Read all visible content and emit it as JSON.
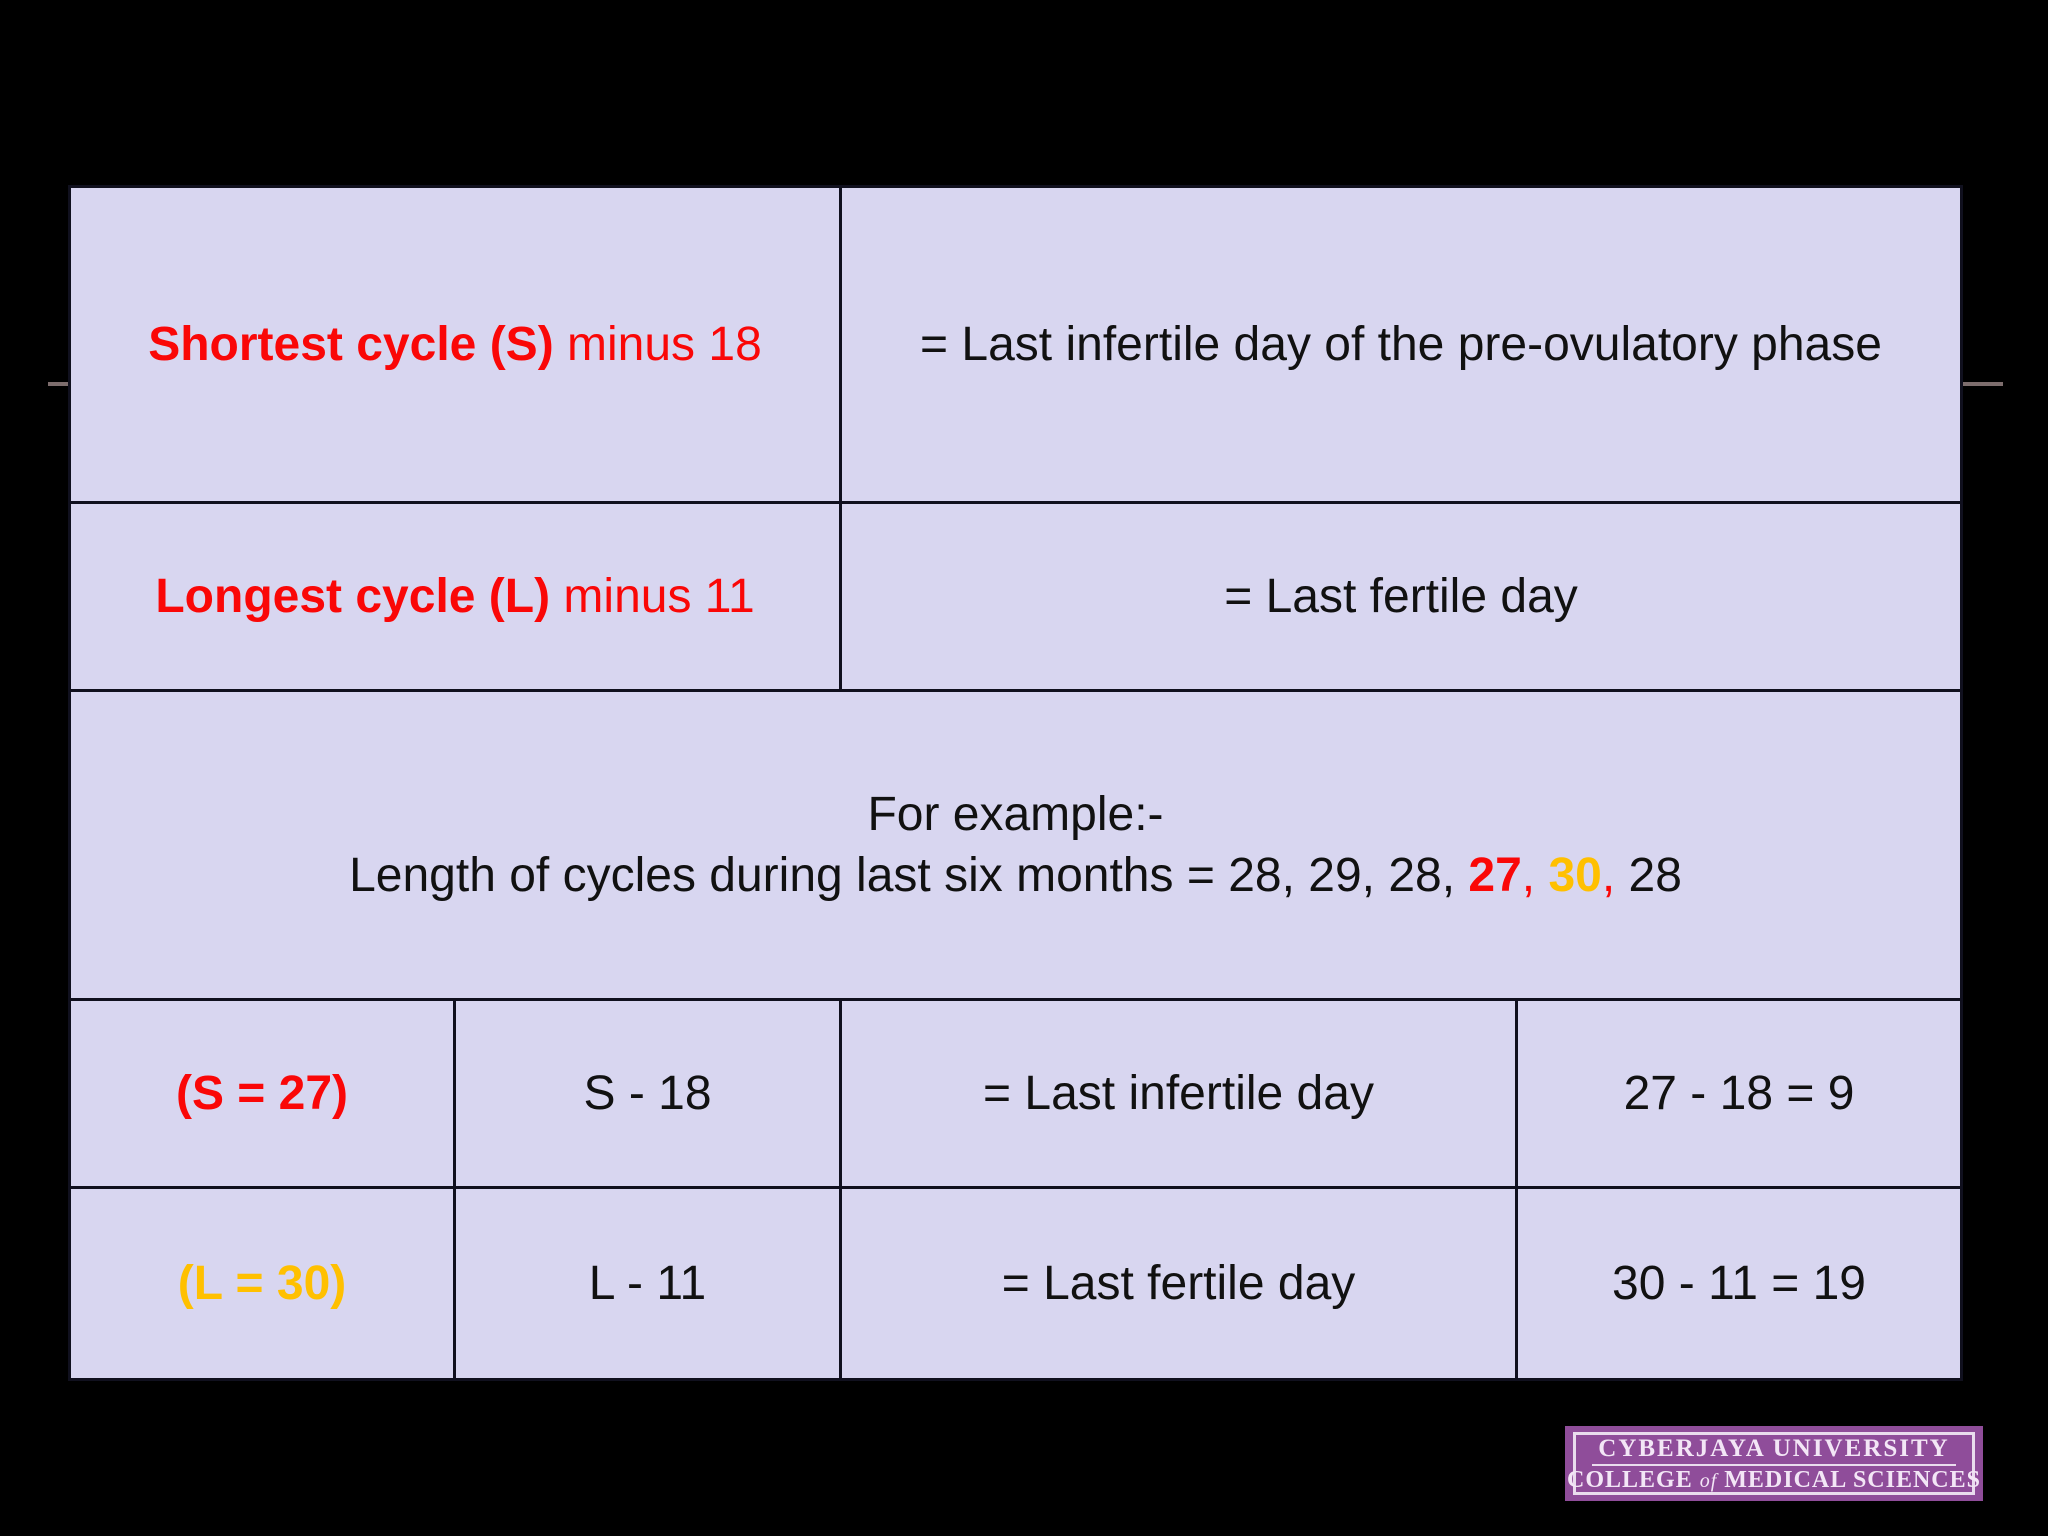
{
  "table": {
    "shortest_row": {
      "term_bold": "Shortest cycle (S)",
      "term_rest": " minus 18",
      "definition": "= Last infertile day of the pre-ovulatory phase"
    },
    "longest_row": {
      "term_bold": "Longest cycle (L)",
      "term_rest": " minus 11",
      "definition": "= Last fertile day"
    },
    "example_row": {
      "heading": "For example:-",
      "prefix": "Length of cycles during last six months = 28, 29, 28, ",
      "shortest_value": "27",
      "separator1": ", ",
      "longest_value": "30",
      "separator2": ", ",
      "suffix": "28"
    },
    "s_calc_row": {
      "label": "(S = 27)",
      "formula": "S - 18",
      "definition": "= Last infertile day",
      "result": "27 - 18 = 9"
    },
    "l_calc_row": {
      "label": "(L = 30)",
      "formula": "L - 11",
      "definition": "= Last fertile day",
      "result": "30 - 11 = 19"
    }
  },
  "colors": {
    "slide_background": "#000000",
    "cell_background": "#d8d6f0",
    "table_border": "#10101e",
    "highlight_red": "#fa0707",
    "highlight_yellow": "#ffc000",
    "body_text": "#111111",
    "rule": "#7d6d6d",
    "logo_background": "#8f4d9a",
    "logo_text": "#f3e6f6"
  },
  "logo": {
    "line1": "CYBERJAYA UNIVERSITY",
    "line2_college": "COLLEGE ",
    "line2_of": "of",
    "line2_rest": " MEDICAL SCIENCES"
  }
}
